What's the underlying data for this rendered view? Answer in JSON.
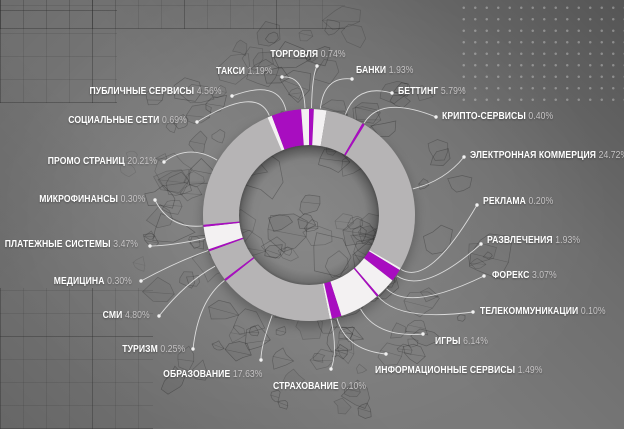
{
  "chart_data": {
    "type": "pie",
    "subtype": "donut",
    "direction": "clockwise",
    "start_angle_deg": 0,
    "legend_position": "labels-around-with-leader-lines",
    "unit": "%",
    "categories": [
      "ТОРГОВЛЯ",
      "БАНКИ",
      "БЕТТИНГ",
      "КРИПТО-СЕРВИСЫ",
      "ЭЛЕКТРОННАЯ КОММЕРЦИЯ",
      "РЕКЛАМА",
      "РАЗВЛЕЧЕНИЯ",
      "ФОРЕКС",
      "ТЕЛЕКОММУНИКАЦИИ",
      "ИГРЫ",
      "ИНФОРМАЦИОННЫЕ СЕРВИСЫ",
      "СТРАХОВАНИЕ",
      "ОБРАЗОВАНИЕ",
      "ТУРИЗМ",
      "СМИ",
      "МЕДИЦИНА",
      "ПЛАТЕЖНЫЕ СИСТЕМЫ",
      "МИКРОФИНАНСЫ",
      "ПРОМО СТРАНИЦ",
      "СОЦИАЛЬНЫЕ СЕТИ",
      "ПУБЛИЧНЫЕ СЕРВИСЫ",
      "ТАКСИ"
    ],
    "values": [
      0.74,
      1.93,
      5.79,
      0.4,
      24.72,
      0.2,
      1.93,
      3.07,
      0.1,
      6.14,
      1.49,
      0.1,
      17.63,
      0.25,
      4.8,
      0.3,
      3.47,
      0.3,
      20.21,
      0.69,
      4.56,
      1.19
    ],
    "value_labels": [
      "0.74%",
      "1.93%",
      "5.79%",
      "0.40%",
      "24.72%",
      "0.20%",
      "1.93%",
      "3.07%",
      "0.10%",
      "6.14%",
      "1.49%",
      "0.10%",
      "17.63%",
      "0.25%",
      "4.80%",
      "0.30%",
      "3.47%",
      "0.30%",
      "20.21%",
      "0.69%",
      "4.56%",
      "1.19%"
    ],
    "segment_color_roles": [
      "magenta",
      "white",
      "gray",
      "magenta",
      "gray",
      "white",
      "magenta",
      "white",
      "magenta",
      "white",
      "magenta",
      "white",
      "gray",
      "magenta",
      "gray",
      "magenta",
      "white",
      "magenta",
      "gray",
      "white",
      "magenta",
      "white"
    ],
    "palette": {
      "gray": "#b6b4b5",
      "white": "#f3f1f2",
      "magenta": "#a807c0"
    },
    "label_name_color": "#ffffff",
    "label_value_color": "#c6c4c5",
    "leader_line_color": "#ececec"
  },
  "background": {
    "base_color": "#7a7a7a",
    "patterns": [
      "wireframe-stones-texture",
      "grid-top-left",
      "grid-bottom-left",
      "dot-grid-top-right"
    ]
  }
}
